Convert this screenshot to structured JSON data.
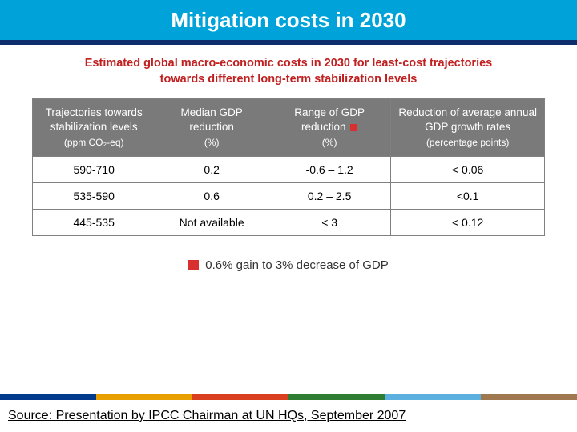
{
  "colors": {
    "title_band_bg": "#00a3d9",
    "title_text": "#ffffff",
    "underline": "#0d2e6b",
    "subtitle": "#c02020",
    "header_bg": "#7a7a7a",
    "border": "#808080",
    "legend_swatch": "#d82f2f",
    "source_band_bg": "#ffffff",
    "stripe": [
      "#003b8e",
      "#e8a000",
      "#d84020",
      "#2e7d32",
      "#5bb0e0",
      "#a07850"
    ]
  },
  "title": "Mitigation costs in 2030",
  "subtitle_line1": "Estimated global macro-economic costs in 2030 for least-cost trajectories",
  "subtitle_line2": "towards different long-term stabilization levels",
  "table": {
    "col_widths_pct": [
      24,
      22,
      24,
      30
    ],
    "headers": [
      {
        "main": "Trajectories towards stabilization levels",
        "sub": "(ppm CO₂-eq)"
      },
      {
        "main": "Median GDP reduction",
        "sub": "(%)"
      },
      {
        "main": "Range of GDP reduction",
        "sub": "(%)",
        "has_marker": true
      },
      {
        "main": "Reduction of average annual GDP growth rates",
        "sub": "(percentage points)"
      }
    ],
    "rows": [
      [
        "590-710",
        "0.2",
        "-0.6 – 1.2",
        "< 0.06"
      ],
      [
        "535-590",
        "0.6",
        "0.2 – 2.5",
        "<0.1"
      ],
      [
        "445-535",
        "Not available",
        "< 3",
        "< 0.12"
      ]
    ]
  },
  "legend_text": "0.6% gain to 3% decrease of GDP",
  "source_text": "Source: Presentation by IPCC Chairman at UN HQs, September 2007"
}
